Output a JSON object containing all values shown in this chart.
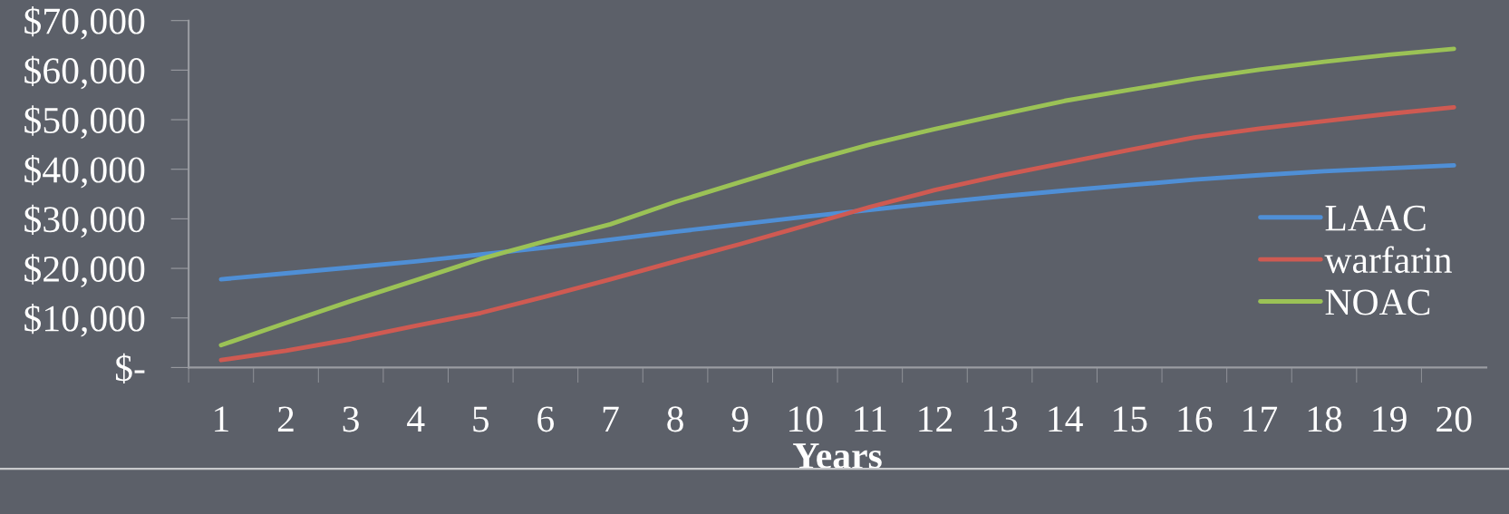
{
  "chart_data": {
    "type": "line",
    "xlabel": "Years",
    "categories": [
      "1",
      "2",
      "3",
      "4",
      "5",
      "6",
      "7",
      "8",
      "9",
      "10",
      "11",
      "12",
      "13",
      "14",
      "15",
      "16",
      "17",
      "18",
      "19",
      "20"
    ],
    "series": [
      {
        "name": "LAAC",
        "color": "#4f8fd6",
        "values": [
          17800,
          19000,
          20200,
          21400,
          22800,
          24200,
          25800,
          27400,
          28900,
          30400,
          31800,
          33200,
          34500,
          35700,
          36800,
          37900,
          38800,
          39600,
          40200,
          40800
        ]
      },
      {
        "name": "warfarin",
        "color": "#cf5a52",
        "values": [
          1500,
          3400,
          5700,
          8400,
          11000,
          14300,
          17800,
          21400,
          24900,
          28600,
          32400,
          35800,
          38700,
          41300,
          43900,
          46400,
          48200,
          49700,
          51200,
          52500
        ]
      },
      {
        "name": "NOAC",
        "color": "#9bc256",
        "values": [
          4500,
          9000,
          13400,
          17600,
          21900,
          25500,
          28900,
          33400,
          37400,
          41400,
          45000,
          48100,
          51000,
          53800,
          56000,
          58200,
          60100,
          61700,
          63100,
          64300
        ]
      }
    ],
    "ylim": [
      0,
      70000
    ],
    "yticks": [
      {
        "value": 0,
        "label": "$-"
      },
      {
        "value": 10000,
        "label": "$10,000"
      },
      {
        "value": 20000,
        "label": "$20,000"
      },
      {
        "value": 30000,
        "label": "$30,000"
      },
      {
        "value": 40000,
        "label": "$40,000"
      },
      {
        "value": 50000,
        "label": "$50,000"
      },
      {
        "value": 60000,
        "label": "$60,000"
      },
      {
        "value": 70000,
        "label": "$70,000"
      }
    ],
    "grid": false,
    "legend": "right",
    "marker": "none",
    "line_style": "solid"
  }
}
